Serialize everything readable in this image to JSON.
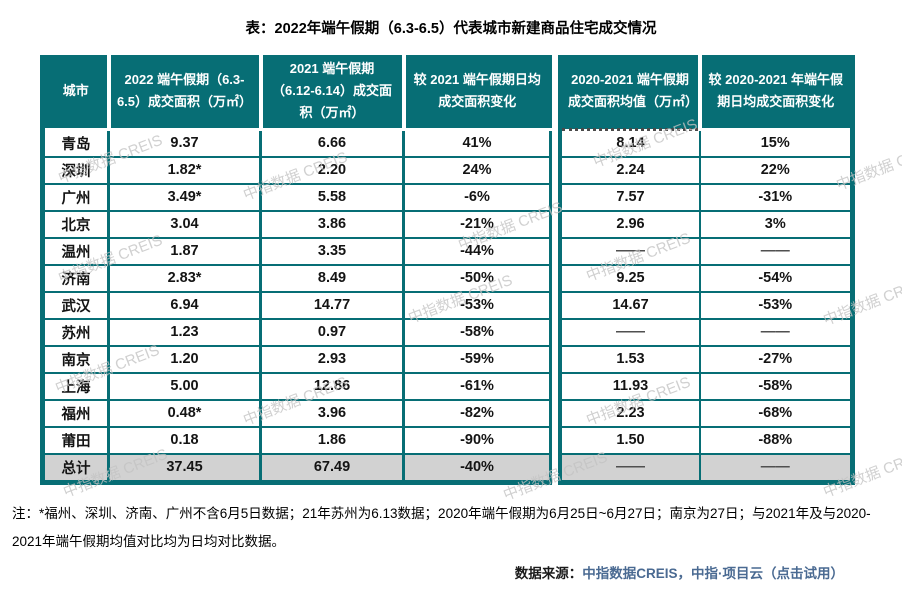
{
  "title": "表：2022年端午假期（6.3-6.5）代表城市新建商品住宅成交情况",
  "watermark_text": "中指数据 CREIS",
  "colors": {
    "header_teal": "#076E75",
    "summary_row_bg": "#D2D2D2",
    "source_link_blue": "#4A6A92"
  },
  "table": {
    "no_data": "——",
    "headers": [
      "城市",
      "2022 端午假期（6.3-6.5）成交面积（万㎡）",
      "2021 端午假期（6.12-6.14）成交面积（万㎡）",
      "较 2021 端午假期日均成交面积变化",
      "2020-2021 端午假期成交面积均值（万㎡）",
      "较 2020-2021 年端午假期日均成交面积变化"
    ],
    "rows": [
      {
        "city": "青岛",
        "v2022": "9.37",
        "v2021": "6.66",
        "chg_vs_2021": "41%",
        "avg_2020_2021": "8.14",
        "chg_vs_2020_2021": "15%",
        "summary": false
      },
      {
        "city": "深圳",
        "v2022": "1.82*",
        "v2021": "2.20",
        "chg_vs_2021": "24%",
        "avg_2020_2021": "2.24",
        "chg_vs_2020_2021": "22%",
        "summary": false
      },
      {
        "city": "广州",
        "v2022": "3.49*",
        "v2021": "5.58",
        "chg_vs_2021": "-6%",
        "avg_2020_2021": "7.57",
        "chg_vs_2020_2021": "-31%",
        "summary": false
      },
      {
        "city": "北京",
        "v2022": "3.04",
        "v2021": "3.86",
        "chg_vs_2021": "-21%",
        "avg_2020_2021": "2.96",
        "chg_vs_2020_2021": "3%",
        "summary": false
      },
      {
        "city": "温州",
        "v2022": "1.87",
        "v2021": "3.35",
        "chg_vs_2021": "-44%",
        "avg_2020_2021": "——",
        "chg_vs_2020_2021": "——",
        "summary": false
      },
      {
        "city": "济南",
        "v2022": "2.83*",
        "v2021": "8.49",
        "chg_vs_2021": "-50%",
        "avg_2020_2021": "9.25",
        "chg_vs_2020_2021": "-54%",
        "summary": false
      },
      {
        "city": "武汉",
        "v2022": "6.94",
        "v2021": "14.77",
        "chg_vs_2021": "-53%",
        "avg_2020_2021": "14.67",
        "chg_vs_2020_2021": "-53%",
        "summary": false
      },
      {
        "city": "苏州",
        "v2022": "1.23",
        "v2021": "0.97",
        "chg_vs_2021": "-58%",
        "avg_2020_2021": "——",
        "chg_vs_2020_2021": "——",
        "summary": false
      },
      {
        "city": "南京",
        "v2022": "1.20",
        "v2021": "2.93",
        "chg_vs_2021": "-59%",
        "avg_2020_2021": "1.53",
        "chg_vs_2020_2021": "-27%",
        "summary": false
      },
      {
        "city": "上海",
        "v2022": "5.00",
        "v2021": "12.86",
        "chg_vs_2021": "-61%",
        "avg_2020_2021": "11.93",
        "chg_vs_2020_2021": "-58%",
        "summary": false
      },
      {
        "city": "福州",
        "v2022": "0.48*",
        "v2021": "3.96",
        "chg_vs_2021": "-82%",
        "avg_2020_2021": "2.23",
        "chg_vs_2020_2021": "-68%",
        "summary": false
      },
      {
        "city": "莆田",
        "v2022": "0.18",
        "v2021": "1.86",
        "chg_vs_2021": "-90%",
        "avg_2020_2021": "1.50",
        "chg_vs_2020_2021": "-88%",
        "summary": false
      },
      {
        "city": "总计",
        "v2022": "37.45",
        "v2021": "67.49",
        "chg_vs_2021": "-40%",
        "avg_2020_2021": "——",
        "chg_vs_2020_2021": "——",
        "summary": true
      }
    ]
  },
  "note": "注：*福州、深圳、济南、广州不含6月5日数据；21年苏州为6.13数据；2020年端午假期为6月25日~6月27日；南京为27日；与2021年及与2020-2021年端午假期均值对比均为日均对比数据。",
  "source": {
    "label": "数据来源：",
    "link": "中指数据CREIS，中指·项目云",
    "trial": "（点击试用）"
  }
}
